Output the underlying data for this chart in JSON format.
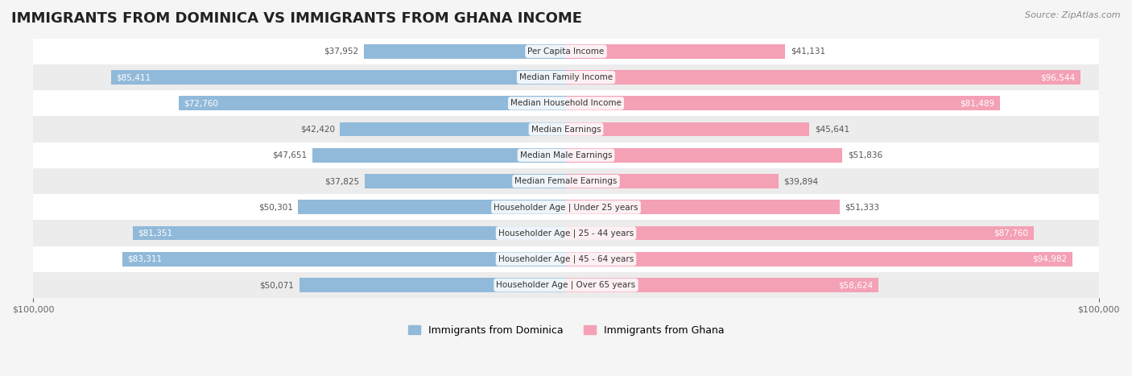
{
  "title": "IMMIGRANTS FROM DOMINICA VS IMMIGRANTS FROM GHANA INCOME",
  "source": "Source: ZipAtlas.com",
  "categories": [
    "Per Capita Income",
    "Median Family Income",
    "Median Household Income",
    "Median Earnings",
    "Median Male Earnings",
    "Median Female Earnings",
    "Householder Age | Under 25 years",
    "Householder Age | 25 - 44 years",
    "Householder Age | 45 - 64 years",
    "Householder Age | Over 65 years"
  ],
  "dominica_values": [
    37952,
    85411,
    72760,
    42420,
    47651,
    37825,
    50301,
    81351,
    83311,
    50071
  ],
  "ghana_values": [
    41131,
    96544,
    81489,
    45641,
    51836,
    39894,
    51333,
    87760,
    94982,
    58624
  ],
  "dominica_color": "#91b9d9",
  "ghana_color": "#f4a0b5",
  "dominica_label": "Immigrants from Dominica",
  "ghana_label": "Immigrants from Ghana",
  "xlim": 100000,
  "bar_height": 0.55,
  "background_color": "#f5f5f5",
  "row_bg_light": "#ffffff",
  "row_bg_dark": "#ececec",
  "title_fontsize": 13,
  "source_fontsize": 8,
  "label_fontsize": 7.5,
  "value_fontsize": 7.5,
  "legend_fontsize": 9
}
